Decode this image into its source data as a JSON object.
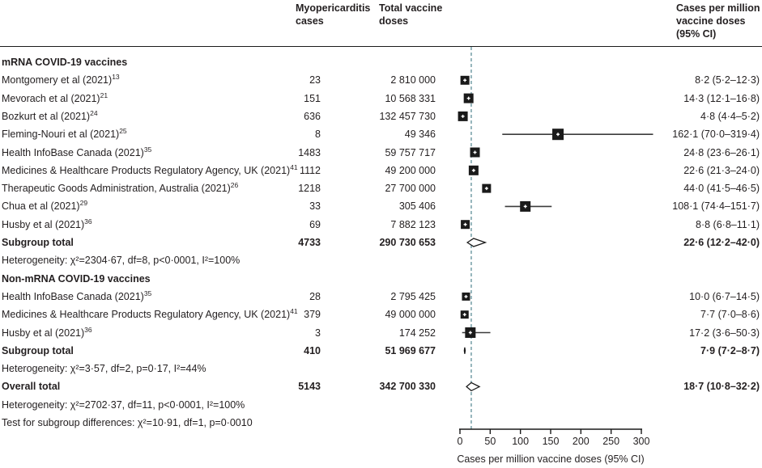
{
  "colors": {
    "text": "#231f20",
    "marker": "#1a1a1a",
    "ci_line": "#3c3c3c",
    "reference_line": "#5d8e99",
    "rule": "#1a1a1a"
  },
  "chart_data": {
    "type": "forest",
    "columns": {
      "cases": "Myopericarditis cases",
      "doses": "Total vaccine doses",
      "ci": "Cases per million vaccine doses (95% CI)"
    },
    "xlabel": "Cases per million vaccine doses (95% CI)",
    "xlim": [
      0,
      300
    ],
    "xticks": [
      0,
      50,
      100,
      150,
      200,
      250,
      300
    ],
    "reference_value": 18.7,
    "groups": [
      {
        "name": "mRNA COVID-19 vaccines",
        "studies": [
          {
            "label": "Montgomery et al (2021)",
            "sup": "13",
            "cases": "23",
            "doses": "2 810 000",
            "est": 8.2,
            "lo": 5.2,
            "hi": 12.3,
            "ci_text": "8·2 (5·2–12·3)",
            "size": 11
          },
          {
            "label": "Mevorach et al (2021)",
            "sup": "21",
            "cases": "151",
            "doses": "10 568 331",
            "est": 14.3,
            "lo": 12.1,
            "hi": 16.8,
            "ci_text": "14·3 (12·1–16·8)",
            "size": 12
          },
          {
            "label": "Bozkurt et al (2021)",
            "sup": "24",
            "cases": "636",
            "doses": "132 457 730",
            "est": 4.8,
            "lo": 4.4,
            "hi": 5.2,
            "ci_text": "4·8 (4·4–5·2)",
            "size": 12
          },
          {
            "label": "Fleming-Nouri et al (2021)",
            "sup": "25",
            "cases": "8",
            "doses": "49 346",
            "est": 162.1,
            "lo": 70.0,
            "hi": 319.4,
            "ci_text": "162·1 (70·0–319·4)",
            "size": 14
          },
          {
            "label": "Health InfoBase Canada (2021)",
            "sup": "35",
            "cases": "1483",
            "doses": "59 757 717",
            "est": 24.8,
            "lo": 23.6,
            "hi": 26.1,
            "ci_text": "24·8 (23·6–26·1)",
            "size": 12
          },
          {
            "label": "Medicines & Healthcare Products Regulatory Agency, UK (2021)",
            "sup": "41",
            "cases": "1112",
            "doses": "49 200 000",
            "est": 22.6,
            "lo": 21.3,
            "hi": 24.0,
            "ci_text": "22·6 (21·3–24·0)",
            "size": 12
          },
          {
            "label": "Therapeutic Goods Administration, Australia (2021)",
            "sup": "26",
            "cases": "1218",
            "doses": "27 700 000",
            "est": 44.0,
            "lo": 41.5,
            "hi": 46.5,
            "ci_text": "44·0 (41·5–46·5)",
            "size": 11
          },
          {
            "label": "Chua et al (2021)",
            "sup": "29",
            "cases": "33",
            "doses": "305 406",
            "est": 108.1,
            "lo": 74.4,
            "hi": 151.7,
            "ci_text": "108·1 (74·4–151·7)",
            "size": 13
          },
          {
            "label": "Husby et al (2021)",
            "sup": "36",
            "cases": "69",
            "doses": "7 882 123",
            "est": 8.8,
            "lo": 6.8,
            "hi": 11.1,
            "ci_text": "8·8 (6·8–11·1)",
            "size": 11
          }
        ],
        "subtotal": {
          "label": "Subgroup total",
          "cases": "4733",
          "doses": "290 730 653",
          "est": 22.6,
          "lo": 12.2,
          "hi": 42.0,
          "ci_text": "22·6 (12·2–42·0)",
          "half_height": 5
        },
        "heterogeneity": "Heterogeneity: χ²=2304·67, df=8, p<0·0001, I²=100%"
      },
      {
        "name": "Non-mRNA COVID-19 vaccines",
        "studies": [
          {
            "label": "Health InfoBase Canada (2021)",
            "sup": "35",
            "cases": "28",
            "doses": "2 795 425",
            "est": 10.0,
            "lo": 6.7,
            "hi": 14.5,
            "ci_text": "10·0 (6·7–14·5)",
            "size": 10
          },
          {
            "label": "Medicines & Healthcare Products Regulatory Agency, UK (2021)",
            "sup": "41",
            "cases": "379",
            "doses": "49 000 000",
            "est": 7.7,
            "lo": 7.0,
            "hi": 8.6,
            "ci_text": "7·7 (7·0–8·6)",
            "size": 10
          },
          {
            "label": "Husby et al (2021)",
            "sup": "36",
            "cases": "3",
            "doses": "174 252",
            "est": 17.2,
            "lo": 3.6,
            "hi": 50.3,
            "ci_text": "17·2 (3·6–50·3)",
            "size": 13
          }
        ],
        "subtotal": {
          "label": "Subgroup total",
          "cases": "410",
          "doses": "51 969 677",
          "est": 7.9,
          "lo": 7.2,
          "hi": 8.7,
          "ci_text": "7·9 (7·2–8·7)",
          "half_height": 4
        },
        "heterogeneity": "Heterogeneity: χ²=3·57, df=2, p=0·17, I²=44%"
      }
    ],
    "overall": {
      "label": "Overall total",
      "cases": "5143",
      "doses": "342 700 330",
      "est": 18.7,
      "lo": 10.8,
      "hi": 32.2,
      "ci_text": "18·7 (10·8–32·2)",
      "half_height": 5
    },
    "overall_heterogeneity": "Heterogeneity: χ²=2702·37, df=11, p<0·0001, I²=100%",
    "subgroup_test": "Test for subgroup differences: χ²=10·91, df=1, p=0·0010"
  }
}
